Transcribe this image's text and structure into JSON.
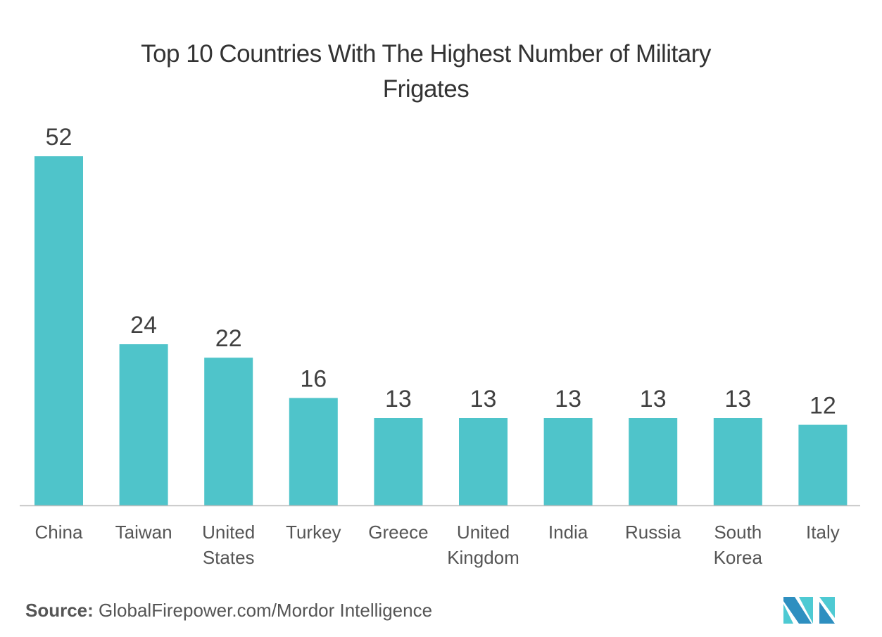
{
  "chart_data": {
    "type": "bar",
    "title": "Top 10 Countries With The Highest Number of Military Frigates",
    "title_lines": [
      "Top 10 Countries With The Highest Number of Military",
      "Frigates"
    ],
    "categories": [
      "China",
      "Taiwan",
      "United States",
      "Turkey",
      "Greece",
      "United Kingdom",
      "India",
      "Russia",
      "South Korea",
      "Italy"
    ],
    "category_lines": [
      [
        "China"
      ],
      [
        "Taiwan"
      ],
      [
        "United",
        "States"
      ],
      [
        "Turkey"
      ],
      [
        "Greece"
      ],
      [
        "United",
        "Kingdom"
      ],
      [
        "India"
      ],
      [
        "Russia"
      ],
      [
        "South",
        "Korea"
      ],
      [
        "Italy"
      ]
    ],
    "values": [
      52,
      24,
      22,
      16,
      13,
      13,
      13,
      13,
      13,
      12
    ],
    "xlabel": "",
    "ylabel": "",
    "ylim": [
      0,
      52
    ],
    "grid": false,
    "data_labels": true,
    "bar_color": "#4fc4ca"
  },
  "source": {
    "label": "Source:",
    "text": "GlobalFirepower.com/Mordor Intelligence"
  },
  "logo": {
    "name": "mordor-intelligence-logo",
    "colors": [
      "#2e8fc0",
      "#4ecad3"
    ]
  }
}
